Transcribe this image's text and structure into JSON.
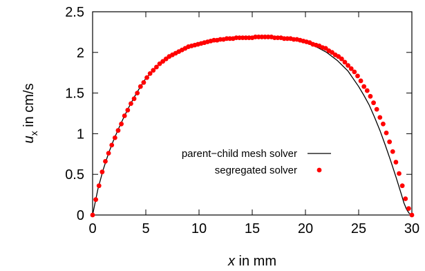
{
  "chart_data": {
    "type": "line",
    "xlabel": {
      "italic": "x",
      "rest": " in mm"
    },
    "ylabel": {
      "italic": "u",
      "subscript": "x",
      "rest": " in cm/s"
    },
    "xlim": [
      0,
      30
    ],
    "ylim": [
      0,
      2.5
    ],
    "xticks": [
      0,
      5,
      10,
      15,
      20,
      25,
      30
    ],
    "yticks": [
      0,
      0.5,
      1,
      1.5,
      2,
      2.5
    ],
    "xtick_labels": [
      "0",
      "5",
      "10",
      "15",
      "20",
      "25",
      "30"
    ],
    "ytick_labels": [
      "0",
      "0.5",
      "1",
      "1.5",
      "2",
      "2.5"
    ],
    "grid": false,
    "legend_position": "center-right",
    "colors": {
      "line": "#000000",
      "points": "#ff0000",
      "axis": "#000000"
    },
    "series": [
      {
        "name": "parent−child mesh solver",
        "style": "line",
        "x": [
          0,
          0.5,
          1,
          1.5,
          2,
          2.5,
          3,
          3.5,
          4,
          4.5,
          5,
          6,
          7,
          8,
          9,
          10,
          11,
          12,
          13,
          14,
          15,
          16,
          17,
          18,
          19,
          20,
          21,
          22,
          23,
          24,
          25,
          25.5,
          26,
          26.5,
          27,
          27.5,
          28,
          28.5,
          29,
          29.25,
          29.5,
          29.75,
          30
        ],
        "y": [
          0,
          0.32,
          0.56,
          0.76,
          0.93,
          1.08,
          1.22,
          1.35,
          1.47,
          1.58,
          1.68,
          1.82,
          1.94,
          2.02,
          2.08,
          2.12,
          2.15,
          2.17,
          2.18,
          2.19,
          2.19,
          2.19,
          2.19,
          2.17,
          2.15,
          2.12,
          2.07,
          2.0,
          1.9,
          1.77,
          1.58,
          1.47,
          1.35,
          1.2,
          1.04,
          0.86,
          0.67,
          0.47,
          0.26,
          0.15,
          0.07,
          0.02,
          0
        ]
      },
      {
        "name": "segregated solver",
        "style": "points",
        "x": [
          0,
          0.3,
          0.6,
          0.9,
          1.2,
          1.5,
          1.8,
          2.1,
          2.4,
          2.7,
          3.0,
          3.3,
          3.6,
          3.9,
          4.2,
          4.5,
          4.8,
          5.1,
          5.4,
          5.7,
          6.0,
          6.3,
          6.6,
          6.9,
          7.2,
          7.5,
          7.8,
          8.1,
          8.4,
          8.7,
          9.0,
          9.3,
          9.6,
          9.9,
          10.2,
          10.5,
          10.8,
          11.1,
          11.4,
          11.7,
          12.0,
          12.3,
          12.6,
          12.9,
          13.2,
          13.5,
          13.8,
          14.1,
          14.4,
          14.7,
          15.0,
          15.3,
          15.6,
          15.9,
          16.2,
          16.5,
          16.8,
          17.1,
          17.4,
          17.7,
          18.0,
          18.3,
          18.6,
          18.9,
          19.2,
          19.5,
          19.8,
          20.1,
          20.4,
          20.7,
          21.0,
          21.3,
          21.6,
          21.9,
          22.2,
          22.5,
          22.8,
          23.1,
          23.4,
          23.7,
          24.0,
          24.3,
          24.6,
          24.9,
          25.2,
          25.5,
          25.8,
          26.1,
          26.4,
          26.7,
          27.0,
          27.3,
          27.6,
          27.9,
          28.2,
          28.5,
          28.8,
          29.1,
          29.4,
          29.7,
          30.0
        ],
        "y": [
          0,
          0.19,
          0.36,
          0.53,
          0.66,
          0.76,
          0.86,
          0.95,
          1.04,
          1.12,
          1.22,
          1.29,
          1.37,
          1.43,
          1.5,
          1.58,
          1.63,
          1.69,
          1.74,
          1.78,
          1.82,
          1.86,
          1.89,
          1.92,
          1.95,
          1.97,
          1.99,
          2.01,
          2.03,
          2.05,
          2.07,
          2.08,
          2.09,
          2.1,
          2.11,
          2.12,
          2.13,
          2.14,
          2.15,
          2.15,
          2.16,
          2.16,
          2.17,
          2.17,
          2.17,
          2.18,
          2.18,
          2.18,
          2.18,
          2.18,
          2.18,
          2.19,
          2.19,
          2.19,
          2.19,
          2.19,
          2.19,
          2.18,
          2.18,
          2.18,
          2.17,
          2.17,
          2.17,
          2.16,
          2.16,
          2.15,
          2.14,
          2.13,
          2.12,
          2.1,
          2.09,
          2.08,
          2.06,
          2.05,
          2.02,
          2.0,
          1.97,
          1.95,
          1.92,
          1.88,
          1.84,
          1.8,
          1.76,
          1.71,
          1.65,
          1.58,
          1.53,
          1.46,
          1.38,
          1.3,
          1.2,
          1.12,
          1.01,
          0.9,
          0.78,
          0.65,
          0.51,
          0.36,
          0.2,
          0.08,
          0
        ]
      }
    ]
  }
}
